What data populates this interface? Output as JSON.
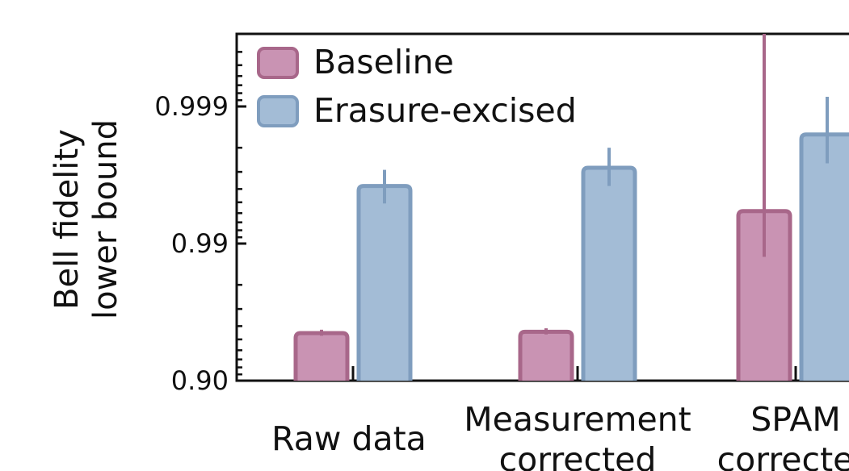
{
  "chart_data": {
    "type": "bar",
    "ylabel_line1": "Bell fidelity",
    "ylabel_line2": "lower bound",
    "yscale": "log-infidelity",
    "yticks": [
      "0.90",
      "0.99",
      "0.999"
    ],
    "categories": [
      {
        "line1": "Raw data",
        "line2": ""
      },
      {
        "line1": "Measurement",
        "line2": "corrected"
      },
      {
        "line1": "SPAM",
        "line2": "corrected"
      }
    ],
    "series": [
      {
        "name": "Baseline",
        "fill": "#c993b3",
        "stroke": "#a8678a",
        "values": [
          0.955,
          0.956,
          0.9942
        ],
        "err_low": [
          0.953,
          0.954,
          0.9875
        ],
        "err_high": [
          0.9575,
          0.9585,
          0.99995
        ]
      },
      {
        "name": "Erasure-excised",
        "fill": "#a3bcd6",
        "stroke": "#7f9dbe",
        "values": [
          0.9962,
          0.9972,
          0.9984
        ],
        "err_low": [
          0.9949,
          0.9962,
          0.9974
        ],
        "err_high": [
          0.9971,
          0.998,
          0.99915
        ]
      }
    ],
    "legend_position": "top-left",
    "grid": false
  }
}
